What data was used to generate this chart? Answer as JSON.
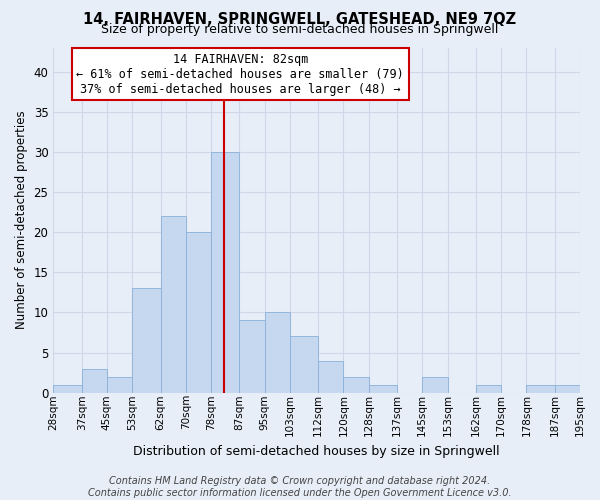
{
  "title": "14, FAIRHAVEN, SPRINGWELL, GATESHEAD, NE9 7QZ",
  "subtitle": "Size of property relative to semi-detached houses in Springwell",
  "xlabel": "Distribution of semi-detached houses by size in Springwell",
  "ylabel": "Number of semi-detached properties",
  "bin_labels": [
    "28sqm",
    "37sqm",
    "45sqm",
    "53sqm",
    "62sqm",
    "70sqm",
    "78sqm",
    "87sqm",
    "95sqm",
    "103sqm",
    "112sqm",
    "120sqm",
    "128sqm",
    "137sqm",
    "145sqm",
    "153sqm",
    "162sqm",
    "170sqm",
    "178sqm",
    "187sqm",
    "195sqm"
  ],
  "bin_edges": [
    28,
    37,
    45,
    53,
    62,
    70,
    78,
    87,
    95,
    103,
    112,
    120,
    128,
    137,
    145,
    153,
    162,
    170,
    178,
    187,
    195
  ],
  "counts": [
    1,
    3,
    2,
    13,
    22,
    20,
    30,
    9,
    10,
    7,
    4,
    2,
    1,
    0,
    2,
    0,
    1,
    0,
    1,
    1
  ],
  "bar_color": "#c5d8f0",
  "bar_edgecolor": "#8ab0d8",
  "vline_x": 82,
  "vline_color": "#cc0000",
  "annotation_title": "14 FAIRHAVEN: 82sqm",
  "annotation_line1": "← 61% of semi-detached houses are smaller (79)",
  "annotation_line2": "37% of semi-detached houses are larger (48) →",
  "annotation_box_edgecolor": "#cc0000",
  "annotation_box_facecolor": "#ffffff",
  "ylim": [
    0,
    43
  ],
  "yticks": [
    0,
    5,
    10,
    15,
    20,
    25,
    30,
    35,
    40
  ],
  "footer_line1": "Contains HM Land Registry data © Crown copyright and database right 2024.",
  "footer_line2": "Contains public sector information licensed under the Open Government Licence v3.0.",
  "plot_bg_color": "#e8eef8",
  "fig_bg_color": "#e8eef8",
  "grid_color": "#d0d8e8",
  "title_fontsize": 10.5,
  "subtitle_fontsize": 9,
  "footer_fontsize": 7,
  "ann_fontsize": 8.5
}
